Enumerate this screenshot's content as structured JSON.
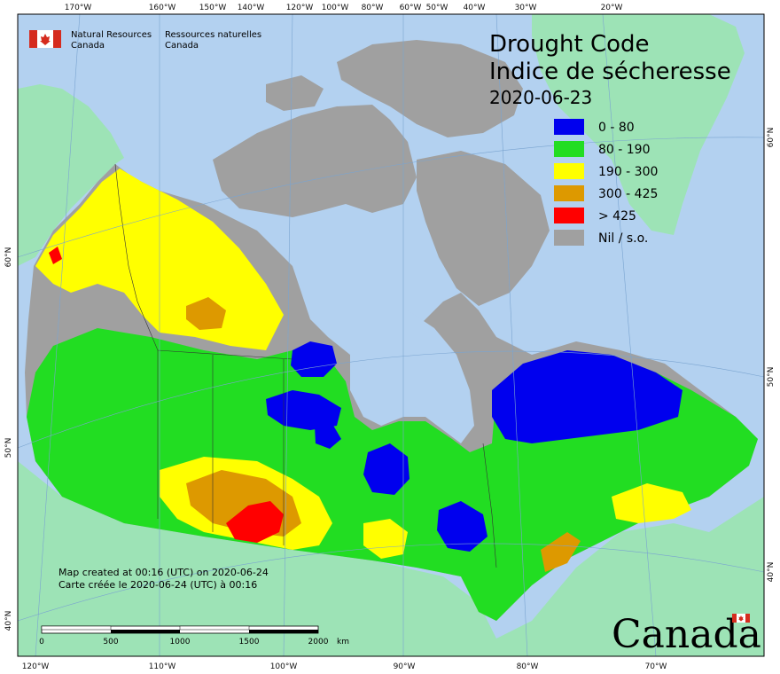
{
  "header": {
    "org_en_line1": "Natural Resources",
    "org_en_line2": "Canada",
    "org_fr_line1": "Ressources naturelles",
    "org_fr_line2": "Canada"
  },
  "title": {
    "line1": "Drought Code",
    "line2": "Indice de sécheresse",
    "date": "2020-06-23"
  },
  "legend": [
    {
      "label": "0 - 80",
      "color": "#0000ee"
    },
    {
      "label": "80 - 190",
      "color": "#22dd22"
    },
    {
      "label": "190 - 300",
      "color": "#ffff00"
    },
    {
      "label": "300 - 425",
      "color": "#dd9900"
    },
    {
      "label": "> 425",
      "color": "#ff0000"
    },
    {
      "label": "Nil / s.o.",
      "color": "#a0a0a0"
    }
  ],
  "credits": {
    "en": "Map created at 00:16 (UTC) on 2020-06-24",
    "fr": "Carte créée le 2020-06-24 (UTC) à 00:16"
  },
  "scale_bar": {
    "labels": [
      "0",
      "500",
      "1000",
      "1500",
      "2000"
    ],
    "unit": "km"
  },
  "wordmark": "Canada",
  "graticule": {
    "top": [
      "170°W",
      "160°W",
      "150°W",
      "140°W",
      "120°W",
      "100°W",
      "80°W",
      "60°W",
      "50°W",
      "40°W",
      "30°W",
      "20°W"
    ],
    "bottom": [
      "120°W",
      "110°W",
      "100°W",
      "90°W",
      "80°W",
      "70°W"
    ],
    "left": [
      "60°N",
      "50°N",
      "40°N"
    ],
    "right": [
      "60°N",
      "50°N",
      "40°N"
    ]
  },
  "colors": {
    "ocean": "#b3d1f0",
    "land_other": "#9de3b6",
    "nil": "#a0a0a0",
    "flag_red": "#d52b1e"
  }
}
